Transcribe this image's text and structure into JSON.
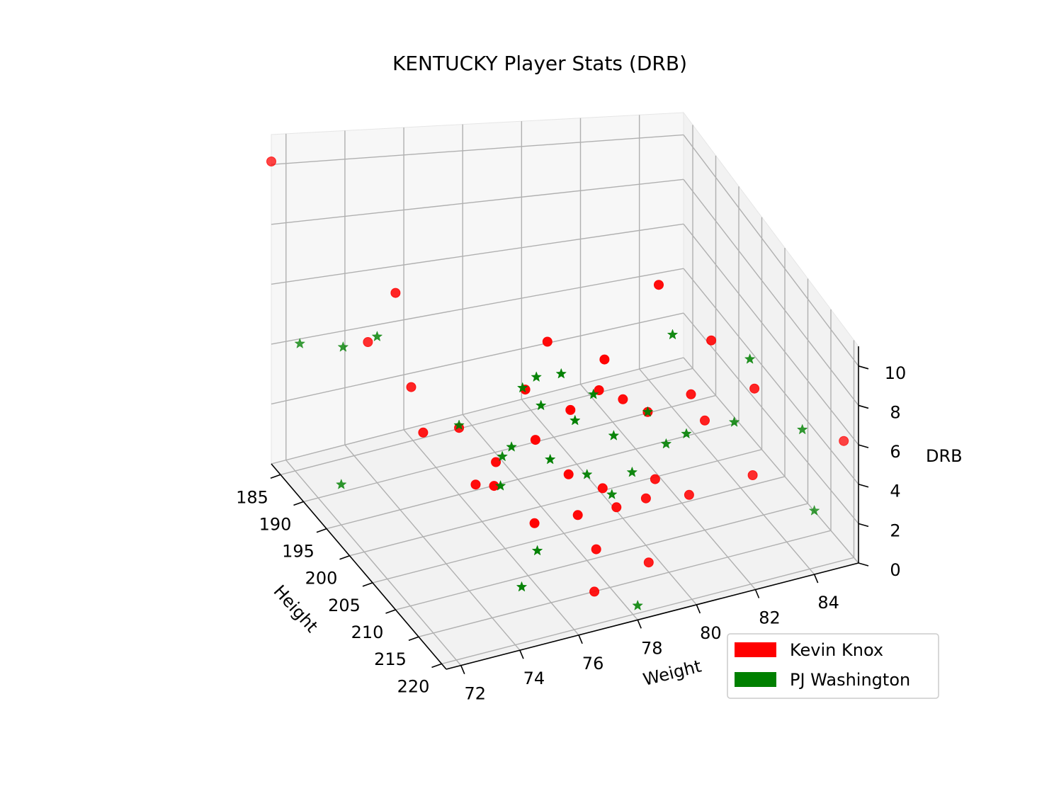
{
  "chart_data": {
    "type": "scatter",
    "projection": "3d",
    "title": "KENTUCKY Player Stats (DRB)",
    "xlabel": "Height",
    "ylabel": "Weight",
    "zlabel": "DRB",
    "xlim": [
      183,
      221
    ],
    "ylim": [
      71.5,
      85.5
    ],
    "zlim": [
      0,
      11
    ],
    "x_ticks": [
      "185",
      "190",
      "195",
      "200",
      "205",
      "210",
      "215",
      "220"
    ],
    "y_ticks": [
      "72",
      "74",
      "76",
      "78",
      "80",
      "82",
      "84"
    ],
    "z_ticks": [
      "0",
      "2",
      "4",
      "6",
      "8",
      "10"
    ],
    "grid": true,
    "legend_position": "lower-right",
    "series": [
      {
        "name": "Kevin Knox",
        "color": "#ff0000",
        "marker": "circle",
        "points": [
          [
            183,
            71.5,
            10.1
          ],
          [
            194,
            74,
            7.6
          ],
          [
            200,
            74,
            3.8
          ],
          [
            205,
            75,
            2.7
          ],
          [
            203,
            77,
            5.5
          ],
          [
            209,
            75,
            3.5
          ],
          [
            203,
            76,
            2.9
          ],
          [
            202,
            77.5,
            3.2
          ],
          [
            200,
            79,
            3.6
          ],
          [
            195,
            79,
            5.2
          ],
          [
            205,
            77,
            0.7
          ],
          [
            208,
            78,
            1.4
          ],
          [
            212,
            78,
            0.9
          ],
          [
            210,
            79,
            1.9
          ],
          [
            207,
            79,
            2.0
          ],
          [
            210,
            80,
            2.0
          ],
          [
            206,
            78,
            2.6
          ],
          [
            218,
            77,
            0.8
          ],
          [
            217,
            79,
            1.2
          ],
          [
            212,
            80,
            3.3
          ],
          [
            213,
            81,
            2.6
          ],
          [
            214,
            83,
            3.2
          ],
          [
            210,
            82,
            4.9
          ],
          [
            205,
            80,
            5.0
          ],
          [
            207,
            82,
            5.3
          ],
          [
            204,
            81,
            4.0
          ],
          [
            203,
            79.5,
            5.0
          ],
          [
            201,
            80,
            5.7
          ],
          [
            200,
            82,
            8.3
          ],
          [
            205,
            83,
            7.0
          ],
          [
            208,
            84,
            5.4
          ],
          [
            221,
            85,
            6.3
          ],
          [
            188,
            74,
            4.6
          ],
          [
            191,
            75,
            3.4
          ],
          [
            195,
            76,
            2.5
          ]
        ]
      },
      {
        "name": "PJ Washington",
        "color": "#008000",
        "marker": "star",
        "points": [
          [
            186,
            72,
            4.5
          ],
          [
            189,
            73,
            4.8
          ],
          [
            190,
            74,
            5.2
          ],
          [
            195,
            72,
            1.4
          ],
          [
            203,
            82,
            6.9
          ],
          [
            205,
            79,
            5.4
          ],
          [
            207,
            84,
            6.5
          ],
          [
            210,
            83,
            4.6
          ],
          [
            212,
            85,
            4.3
          ],
          [
            221,
            84,
            3.1
          ],
          [
            221,
            78,
            0.6
          ],
          [
            215,
            75,
            0.9
          ],
          [
            212,
            76,
            1.4
          ],
          [
            209,
            79,
            2.2
          ],
          [
            207,
            80,
            2.4
          ],
          [
            204,
            81,
            4.0
          ],
          [
            208,
            81,
            3.6
          ],
          [
            206,
            82,
            3.3
          ],
          [
            203,
            80,
            3.0
          ],
          [
            200,
            78,
            4.0
          ],
          [
            198,
            79,
            4.6
          ],
          [
            199,
            78,
            4.9
          ],
          [
            195,
            76,
            2.6
          ],
          [
            198,
            77,
            1.8
          ],
          [
            200,
            77,
            2.6
          ],
          [
            202,
            78,
            2.3
          ],
          [
            210,
            78,
            3.5
          ],
          [
            204,
            76,
            2.2
          ],
          [
            201,
            79,
            3.4
          ],
          [
            196,
            78,
            3.8
          ]
        ]
      }
    ]
  }
}
